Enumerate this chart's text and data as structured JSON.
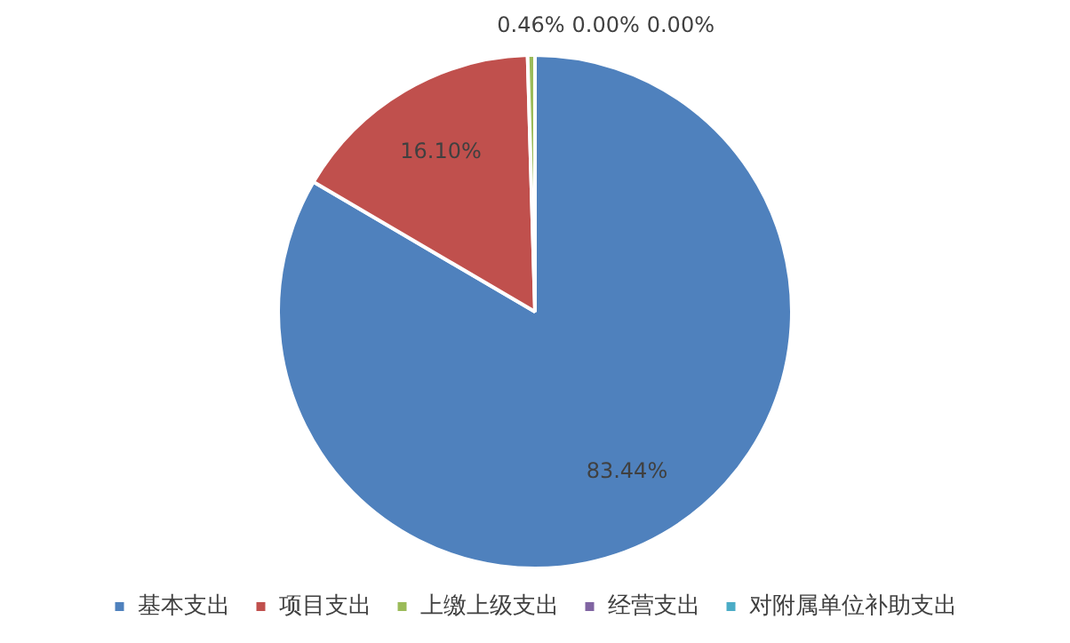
{
  "chart_data": {
    "type": "pie",
    "categories": [
      "基本支出",
      "项目支出",
      "上缴上级支出",
      "经营支出",
      "对附属单位补助支出"
    ],
    "values": [
      83.44,
      16.1,
      0.46,
      0.0,
      0.0
    ],
    "colors": [
      "#4f81bd",
      "#c0504d",
      "#9bbb59",
      "#8064a2",
      "#4bacc6"
    ],
    "value_labels": [
      "83.44%",
      "16.10%",
      "0.46%",
      "0.00%",
      "0.00%"
    ],
    "legend": "bottom"
  }
}
